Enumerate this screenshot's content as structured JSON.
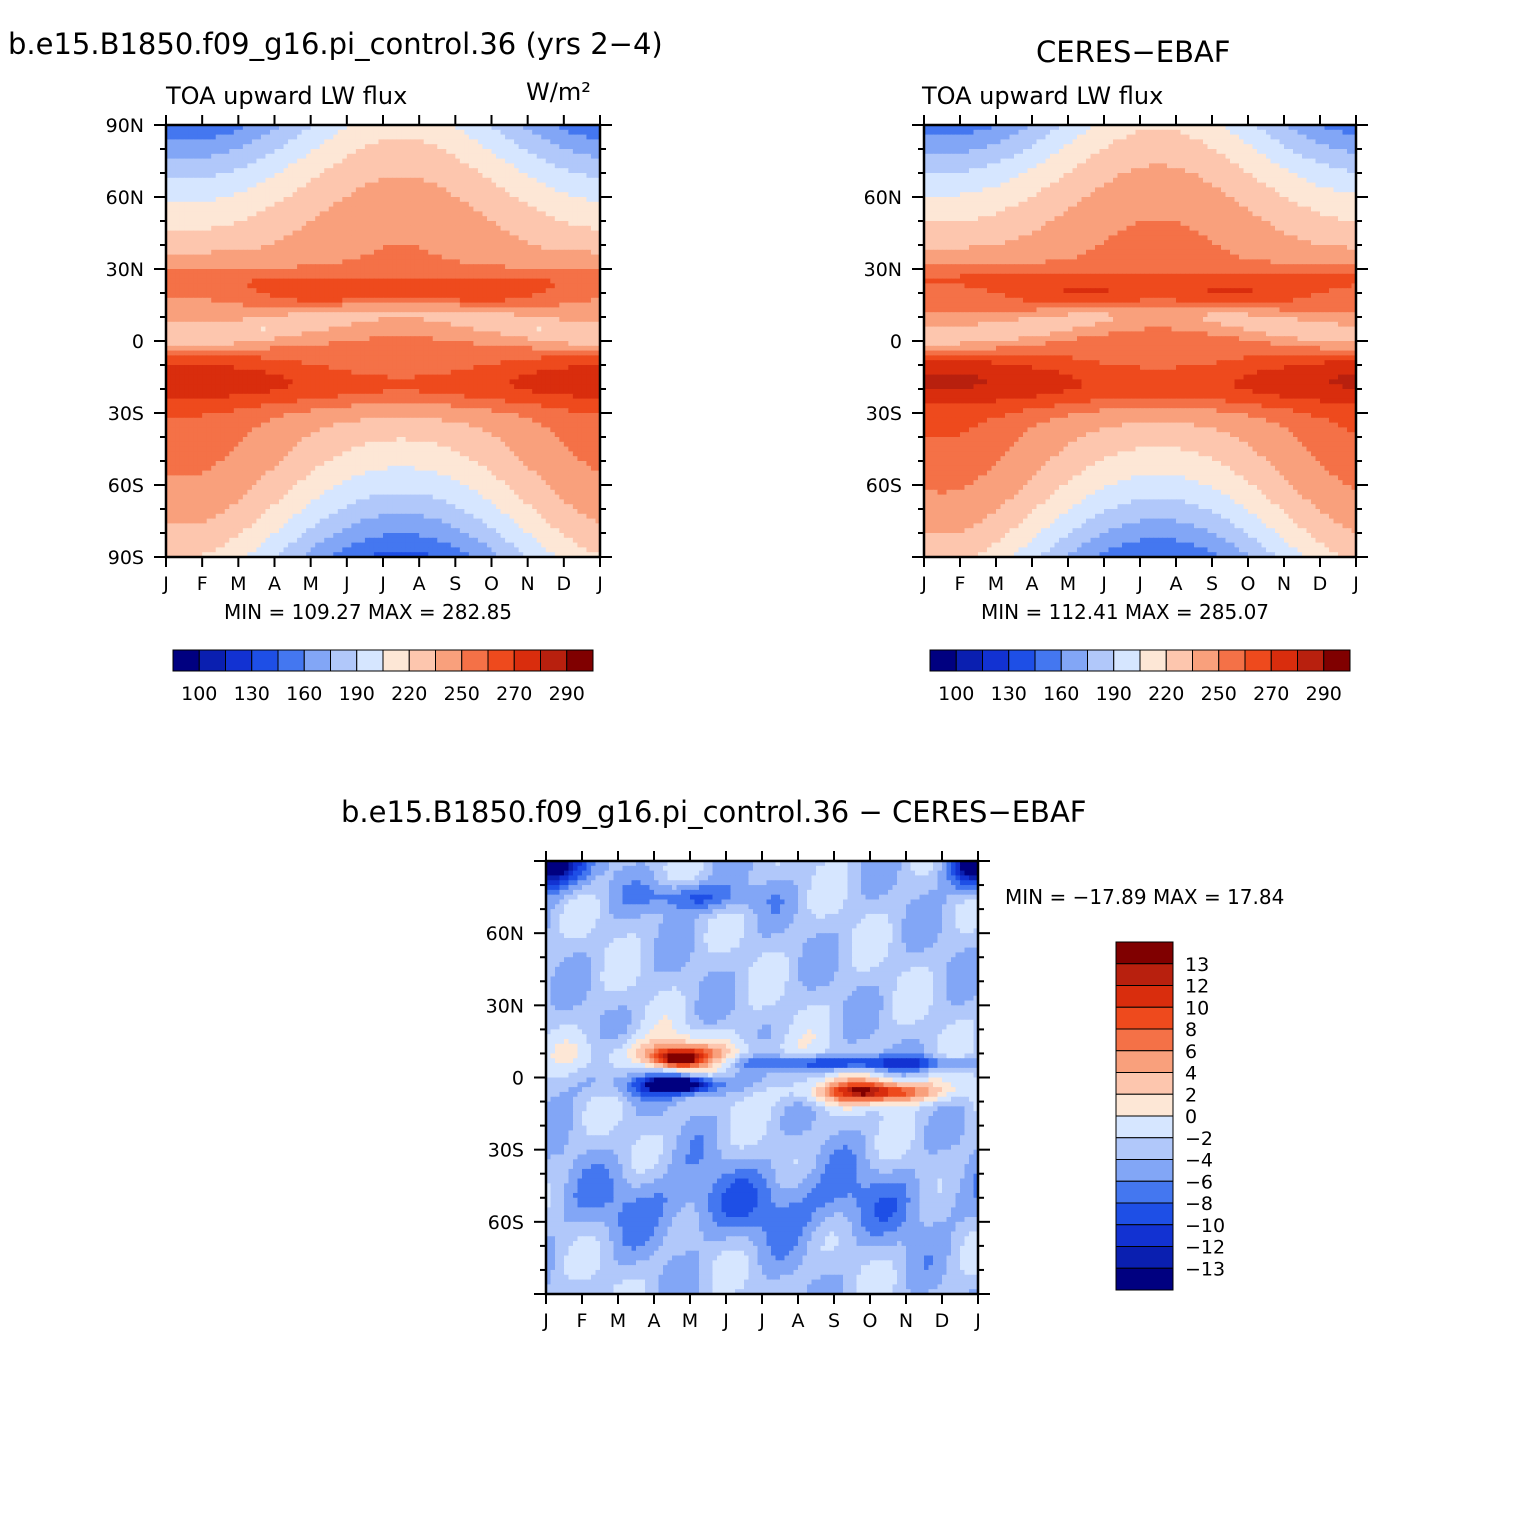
{
  "chart_data": [
    {
      "type": "heatmap",
      "title": "b.e15.B1850.f09_g16.pi_control.36 (yrs 2−4)",
      "subtitle": "TOA upward LW flux",
      "units": "W/m²",
      "x_categories": [
        "J",
        "F",
        "M",
        "A",
        "M",
        "J",
        "J",
        "A",
        "S",
        "O",
        "N",
        "D",
        "J"
      ],
      "y_ticks": [
        "90N",
        "60N",
        "30N",
        "0",
        "30S",
        "60S",
        "90S"
      ],
      "y_range": [
        -90,
        90
      ],
      "min_max": "MIN = 109.27 MAX = 282.85",
      "colorbar_labels": [
        "100",
        "130",
        "160",
        "190",
        "220",
        "250",
        "270",
        "290"
      ],
      "field": "model"
    },
    {
      "type": "heatmap",
      "title": "CERES−EBAF",
      "subtitle": "TOA upward LW flux",
      "x_categories": [
        "J",
        "F",
        "M",
        "A",
        "M",
        "J",
        "J",
        "A",
        "S",
        "O",
        "N",
        "D",
        "J"
      ],
      "y_ticks": [
        "60N",
        "30N",
        "0",
        "30S",
        "60S"
      ],
      "y_range": [
        -90,
        90
      ],
      "min_max": "MIN = 112.41 MAX = 285.07",
      "colorbar_labels": [
        "100",
        "130",
        "160",
        "190",
        "220",
        "250",
        "270",
        "290"
      ],
      "field": "obs"
    },
    {
      "type": "heatmap",
      "title": "b.e15.B1850.f09_g16.pi_control.36 − CERES−EBAF",
      "x_categories": [
        "J",
        "F",
        "M",
        "A",
        "M",
        "J",
        "J",
        "A",
        "S",
        "O",
        "N",
        "D",
        "J"
      ],
      "y_ticks": [
        "60N",
        "30N",
        "0",
        "30S",
        "60S"
      ],
      "y_range": [
        -90,
        90
      ],
      "min_max": "MIN = −17.89 MAX =  17.84",
      "colorbar_labels": [
        "13",
        "12",
        "10",
        "8",
        "6",
        "4",
        "2",
        "0",
        "−2",
        "−4",
        "−6",
        "−8",
        "−10",
        "−12",
        "−13"
      ],
      "field": "diff"
    }
  ],
  "colors": {
    "flux_scale": [
      "#000080",
      "#0a1fb0",
      "#1232d2",
      "#1e4fe6",
      "#4477f0",
      "#82a6f6",
      "#b1c8fa",
      "#d6e6ff",
      "#fde7d6",
      "#fdc6ae",
      "#f9a07c",
      "#f47147",
      "#ee4a1d",
      "#d92d0d",
      "#b8200e",
      "#800000"
    ],
    "diff_scale": [
      "#800000",
      "#b8200e",
      "#d92d0d",
      "#ee4a1d",
      "#f47147",
      "#f9a07c",
      "#fdc6ae",
      "#fde7d6",
      "#d6e6ff",
      "#b1c8fa",
      "#82a6f6",
      "#4477f0",
      "#1e4fe6",
      "#1232d2",
      "#0a1fb0",
      "#000080"
    ]
  }
}
